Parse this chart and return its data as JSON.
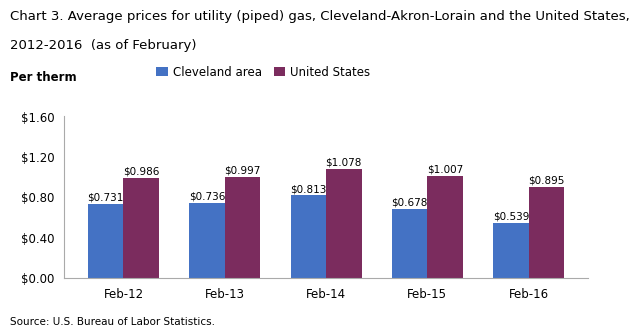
{
  "title_line1": "Chart 3. Average prices for utility (piped) gas, Cleveland-Akron-Lorain and the United States,",
  "title_line2": "2012-2016  (as of February)",
  "per_therm_label": "Per therm",
  "categories": [
    "Feb-12",
    "Feb-13",
    "Feb-14",
    "Feb-15",
    "Feb-16"
  ],
  "cleveland_values": [
    0.731,
    0.736,
    0.813,
    0.678,
    0.539
  ],
  "us_values": [
    0.986,
    0.997,
    1.078,
    1.007,
    0.895
  ],
  "cleveland_color": "#4472C4",
  "us_color": "#7B2C5E",
  "legend_labels": [
    "Cleveland area",
    "United States"
  ],
  "ylim": [
    0,
    1.6
  ],
  "yticks": [
    0.0,
    0.4,
    0.8,
    1.2,
    1.6
  ],
  "ytick_labels": [
    "$0.00",
    "$0.40",
    "$0.80",
    "$1.20",
    "$1.60"
  ],
  "source": "Source: U.S. Bureau of Labor Statistics.",
  "bar_width": 0.35,
  "label_fontsize": 7.5,
  "title_fontsize": 9.5,
  "tick_fontsize": 8.5,
  "legend_fontsize": 8.5,
  "source_fontsize": 7.5,
  "per_therm_fontsize": 8.5
}
